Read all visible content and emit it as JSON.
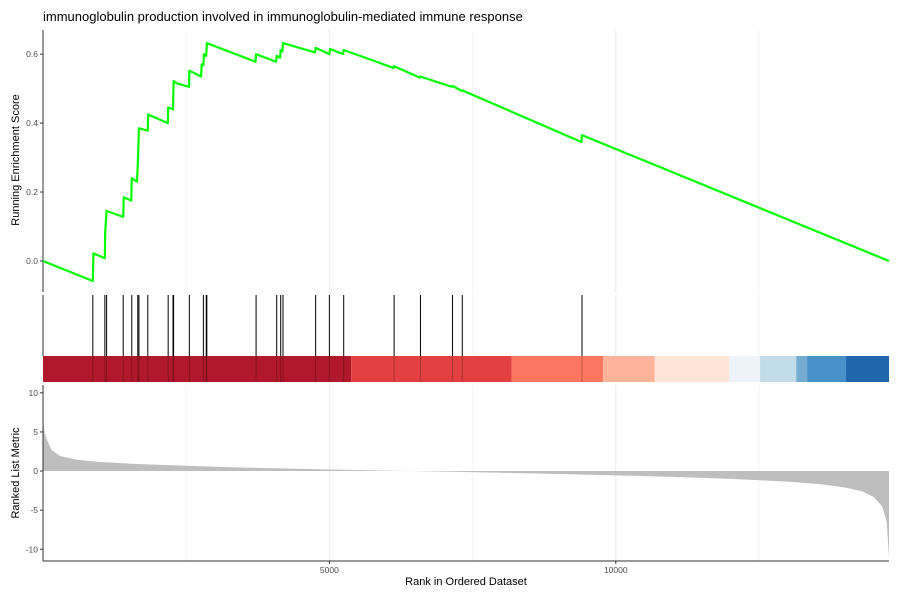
{
  "chart_data": {
    "type": "line",
    "title": "immunoglobulin production involved in immunoglobulin-mediated immune response",
    "x_axis": {
      "label": "Rank in Ordered Dataset",
      "range": [
        0,
        14770
      ],
      "ticks": [
        5000,
        10000
      ],
      "tick_labels": [
        "5000",
        "10000"
      ],
      "grid": true
    },
    "enrichment_panel": {
      "ylabel": "Running Enrichment Score",
      "ylim": [
        -0.09,
        0.67
      ],
      "yticks": [
        0.0,
        0.2,
        0.4,
        0.6
      ],
      "ytick_labels": [
        "0.0",
        "0.2",
        "0.4",
        "0.6"
      ],
      "line_color": "#00ff00",
      "series": [
        {
          "x": [
            0,
            870,
            880,
            1080,
            1085,
            1110,
            1400,
            1410,
            1540,
            1550,
            1640,
            1655,
            1675,
            1830,
            1835,
            2180,
            2185,
            2270,
            2280,
            2340,
            2550,
            2555,
            2760,
            2770,
            2800,
            2810,
            2850,
            2860,
            3710,
            3720,
            4070,
            4080,
            4140,
            4150,
            4180,
            4190,
            4750,
            4760,
            5000,
            5010,
            5240,
            5250,
            6120,
            6130,
            6580,
            6590,
            7140,
            7150,
            7310,
            7320,
            9400,
            9410,
            14770
          ],
          "y": [
            0.0,
            -0.058,
            0.022,
            0.008,
            0.08,
            0.145,
            0.128,
            0.185,
            0.175,
            0.24,
            0.23,
            0.28,
            0.385,
            0.378,
            0.425,
            0.4,
            0.445,
            0.44,
            0.522,
            0.515,
            0.505,
            0.552,
            0.535,
            0.57,
            0.568,
            0.6,
            0.595,
            0.632,
            0.578,
            0.6,
            0.578,
            0.595,
            0.59,
            0.612,
            0.608,
            0.632,
            0.605,
            0.618,
            0.6,
            0.615,
            0.6,
            0.612,
            0.56,
            0.565,
            0.532,
            0.535,
            0.505,
            0.508,
            0.493,
            0.495,
            0.345,
            0.365,
            0.0
          ]
        }
      ]
    },
    "gene_hits": [
      870,
      1080,
      1110,
      1400,
      1550,
      1655,
      1675,
      1830,
      2185,
      2270,
      2280,
      2555,
      2800,
      2850,
      2860,
      3720,
      4080,
      4150,
      4190,
      4760,
      5000,
      5250,
      6130,
      6590,
      7150,
      7320,
      9410
    ],
    "rank_color_bands": [
      {
        "x0": 0,
        "x1": 5380,
        "color": "#b2182b"
      },
      {
        "x0": 5380,
        "x1": 8180,
        "color": "#e34141"
      },
      {
        "x0": 8180,
        "x1": 9780,
        "color": "#fb7760"
      },
      {
        "x0": 9780,
        "x1": 10680,
        "color": "#fdb39a"
      },
      {
        "x0": 10680,
        "x1": 11980,
        "color": "#fee3d8"
      },
      {
        "x0": 11980,
        "x1": 12520,
        "color": "#eef3fa"
      },
      {
        "x0": 12520,
        "x1": 13150,
        "color": "#c2dcea"
      },
      {
        "x0": 13150,
        "x1": 13340,
        "color": "#74add1"
      },
      {
        "x0": 13340,
        "x1": 14020,
        "color": "#4891c8"
      },
      {
        "x0": 14020,
        "x1": 14770,
        "color": "#2166ac"
      }
    ],
    "ranked_metric_panel": {
      "ylabel": "Ranked List Metric",
      "ylim": [
        -11.5,
        11
      ],
      "yticks": [
        -10,
        -5,
        0,
        5,
        10
      ],
      "ytick_labels": [
        "-10",
        "-5",
        "0",
        "5",
        "10"
      ],
      "fill_color": "#bebebe",
      "x": [
        0,
        30,
        80,
        150,
        300,
        600,
        1000,
        1500,
        2000,
        3000,
        4000,
        5000,
        6000,
        7000,
        8000,
        9000,
        10000,
        11000,
        12000,
        13000,
        13600,
        14000,
        14300,
        14500,
        14650,
        14730,
        14770
      ],
      "y": [
        7.0,
        4.8,
        3.8,
        2.7,
        1.9,
        1.45,
        1.15,
        0.95,
        0.8,
        0.55,
        0.35,
        0.2,
        0.05,
        -0.08,
        -0.22,
        -0.38,
        -0.55,
        -0.75,
        -1.0,
        -1.35,
        -1.7,
        -2.1,
        -2.6,
        -3.3,
        -4.5,
        -6.5,
        -11.0
      ]
    }
  }
}
